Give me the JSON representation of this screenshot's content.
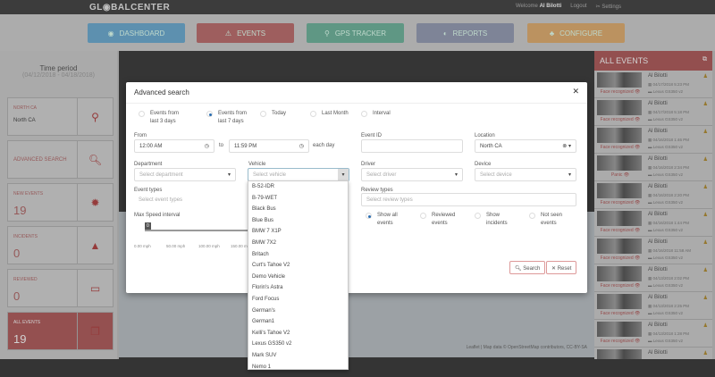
{
  "header": {
    "logo": "GL◉BALCENTER",
    "welcome": "Welcome",
    "user": "Al Bilotti",
    "logout": "Logout",
    "settings": "Settings"
  },
  "nav": [
    {
      "label": "DASHBOARD",
      "color": "#5b9fc9"
    },
    {
      "label": "EVENTS",
      "color": "#b25c5c"
    },
    {
      "label": "GPS TRACKER",
      "color": "#5fa890"
    },
    {
      "label": "REPORTS",
      "color": "#8890a8"
    },
    {
      "label": "CONFIGURE",
      "color": "#d8a260"
    }
  ],
  "sidebar": {
    "time_period": "Time period",
    "range": "(04/12/2018 - 04/18/2018)",
    "cards": [
      {
        "label": "NORTH CA",
        "value": "North CA",
        "icon": "map-pin-icon"
      },
      {
        "label": "ADVANCED SEARCH",
        "value": "",
        "icon": "search-icon"
      },
      {
        "label": "NEW EVENTS",
        "value": "19",
        "icon": "alert-badge-icon"
      },
      {
        "label": "INCIDENTS",
        "value": "0",
        "icon": "warning-icon"
      },
      {
        "label": "REVIEWED",
        "value": "0",
        "icon": "monitor-icon"
      },
      {
        "label": "ALL EVENTS",
        "value": "19",
        "icon": "folder-icon"
      }
    ]
  },
  "map": {
    "attribution": "Leaflet | Map data © OpenStreetMap contributors, CC-BY-SA"
  },
  "events_panel": {
    "title": "ALL EVENTS",
    "items": [
      {
        "type": "Face recognized",
        "name": "Al Bilotti",
        "date": "04/17/2018 5:23 PM",
        "vehicle": "Lexus GS350 v2"
      },
      {
        "type": "Face recognized",
        "name": "Al Bilotti",
        "date": "04/17/2018 5:18 PM",
        "vehicle": "Lexus GS350 v2"
      },
      {
        "type": "Face recognized",
        "name": "Al Bilotti",
        "date": "04/16/2018 1:46 PM",
        "vehicle": "Lexus GS350 v2"
      },
      {
        "type": "Panic",
        "name": "Al Bilotti",
        "date": "04/16/2018 2:34 PM",
        "vehicle": "Lexus GS350 v2"
      },
      {
        "type": "Face recognized",
        "name": "Al Bilotti",
        "date": "04/16/2018 2:20 PM",
        "vehicle": "Lexus GS350 v2"
      },
      {
        "type": "Face recognized",
        "name": "Al Bilotti",
        "date": "04/16/2018 1:44 PM",
        "vehicle": "Lexus GS350 v2"
      },
      {
        "type": "Face recognized",
        "name": "Al Bilotti",
        "date": "04/16/2018 11:58 AM",
        "vehicle": "Lexus GS350 v2"
      },
      {
        "type": "Face recognized",
        "name": "Al Bilotti",
        "date": "04/13/2018 2:02 PM",
        "vehicle": "Lexus GS350 v2"
      },
      {
        "type": "Face recognized",
        "name": "Al Bilotti",
        "date": "04/13/2018 2:25 PM",
        "vehicle": "Lexus GS350 v2"
      },
      {
        "type": "Face recognized",
        "name": "Al Bilotti",
        "date": "04/13/2018 1:28 PM",
        "vehicle": "Lexus GS350 v2"
      },
      {
        "type": "",
        "name": "Al Bilotti",
        "date": "",
        "vehicle": ""
      }
    ]
  },
  "modal": {
    "title": "Advanced search",
    "periods": [
      {
        "label": "Events from last 3 days",
        "checked": false
      },
      {
        "label": "Events from last 7 days",
        "checked": true
      },
      {
        "label": "Today",
        "checked": false
      },
      {
        "label": "Last Month",
        "checked": false
      },
      {
        "label": "Interval",
        "checked": false
      }
    ],
    "from_label": "From",
    "from": "12:00 AM",
    "to_label": "to",
    "to": "11:59 PM",
    "each_day": "each day",
    "event_id_label": "Event ID",
    "event_id": "",
    "location_label": "Location",
    "location": "North CA",
    "department_label": "Department",
    "department_ph": "Select department",
    "vehicle_label": "Vehicle",
    "vehicle_ph": "Select vehicle",
    "driver_label": "Driver",
    "driver_ph": "Select driver",
    "device_label": "Device",
    "device_ph": "Select device",
    "event_types_label": "Event types",
    "event_types_ph": "Select event types",
    "review_types_label": "Review types",
    "review_types_ph": "Select review types",
    "speed_label": "Max Speed interval",
    "speed_value": "0",
    "speed_ticks": [
      "0.00 mph",
      "50.00 mph",
      "100.00 mph",
      "150.00 mph"
    ],
    "review_filters": [
      {
        "label": "Show all events",
        "checked": true
      },
      {
        "label": "Reviewed events",
        "checked": false
      },
      {
        "label": "Show incidents",
        "checked": false
      },
      {
        "label": "Not seen events",
        "checked": false
      }
    ],
    "search": "Search",
    "reset": "Reset",
    "vehicle_options": [
      "B-52-IDR",
      "B-79-WET",
      "Black Bus",
      "Blue Bus",
      "BMW 7 X1P",
      "BMW 7X2",
      "Britach",
      "Curt's Tahoe V2",
      "Demo Vehicle",
      "Florin's Astra",
      "Ford Focus",
      "German's",
      "German1",
      "Kelli's Tahoe V2",
      "Lexus GS350 v2",
      "Mark SUV",
      "Nemo 1"
    ]
  }
}
